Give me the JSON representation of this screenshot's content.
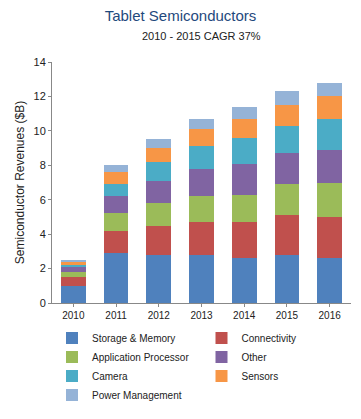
{
  "chart_data": {
    "type": "bar",
    "title": "Tablet Semiconductors",
    "subtitle": "2010 - 2015 CAGR 37%",
    "y_label": "Semiconductor Revenues ($B)",
    "categories": [
      "2010",
      "2011",
      "2012",
      "2013",
      "2014",
      "2015",
      "2016"
    ],
    "stacked": true,
    "grid": false,
    "legend": "bottom",
    "ylim": [
      0,
      14
    ],
    "yticks": [
      0,
      2,
      4,
      6,
      8,
      10,
      12,
      14
    ],
    "series": [
      {
        "name": "Storage & Memory",
        "color": "#4f81bd",
        "values": [
          1.0,
          2.9,
          2.8,
          2.8,
          2.6,
          2.8,
          2.6
        ]
      },
      {
        "name": "Connectivity",
        "color": "#c0504d",
        "values": [
          0.5,
          1.3,
          1.7,
          1.9,
          2.1,
          2.3,
          2.4
        ]
      },
      {
        "name": "Application Processor",
        "color": "#9bbb59",
        "values": [
          0.3,
          1.0,
          1.3,
          1.5,
          1.6,
          1.8,
          2.0
        ]
      },
      {
        "name": "Other",
        "color": "#8064a2",
        "values": [
          0.3,
          1.0,
          1.3,
          1.6,
          1.8,
          1.8,
          1.9
        ]
      },
      {
        "name": "Camera",
        "color": "#4bacc6",
        "values": [
          0.1,
          0.7,
          1.1,
          1.3,
          1.5,
          1.6,
          1.8
        ]
      },
      {
        "name": "Sensors",
        "color": "#f79646",
        "values": [
          0.2,
          0.7,
          0.8,
          1.0,
          1.1,
          1.2,
          1.3
        ]
      },
      {
        "name": "Power Management",
        "color": "#95b3d7",
        "values": [
          0.1,
          0.4,
          0.5,
          0.6,
          0.7,
          0.8,
          0.8
        ]
      }
    ]
  }
}
